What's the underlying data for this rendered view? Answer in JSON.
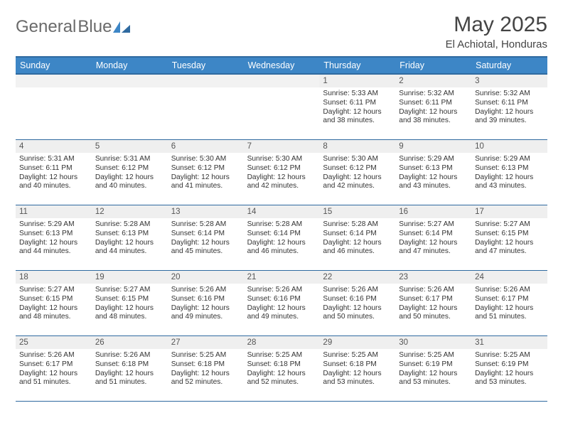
{
  "logo": {
    "text1": "General",
    "text2": "Blue"
  },
  "title": "May 2025",
  "subtitle": "El Achiotal, Honduras",
  "dayHeaders": [
    "Sunday",
    "Monday",
    "Tuesday",
    "Wednesday",
    "Thursday",
    "Friday",
    "Saturday"
  ],
  "colors": {
    "header_bg": "#3d86c6",
    "header_border": "#2f6aa0",
    "daynum_bg": "#efefef",
    "text": "#333333",
    "logo_gray": "#6a6a6a",
    "logo_blue": "#3d86c6"
  },
  "startDayIndex": 4,
  "daysInMonth": 31,
  "days": {
    "1": {
      "sunrise": "5:33 AM",
      "sunset": "6:11 PM",
      "daylight": "12 hours and 38 minutes."
    },
    "2": {
      "sunrise": "5:32 AM",
      "sunset": "6:11 PM",
      "daylight": "12 hours and 38 minutes."
    },
    "3": {
      "sunrise": "5:32 AM",
      "sunset": "6:11 PM",
      "daylight": "12 hours and 39 minutes."
    },
    "4": {
      "sunrise": "5:31 AM",
      "sunset": "6:11 PM",
      "daylight": "12 hours and 40 minutes."
    },
    "5": {
      "sunrise": "5:31 AM",
      "sunset": "6:12 PM",
      "daylight": "12 hours and 40 minutes."
    },
    "6": {
      "sunrise": "5:30 AM",
      "sunset": "6:12 PM",
      "daylight": "12 hours and 41 minutes."
    },
    "7": {
      "sunrise": "5:30 AM",
      "sunset": "6:12 PM",
      "daylight": "12 hours and 42 minutes."
    },
    "8": {
      "sunrise": "5:30 AM",
      "sunset": "6:12 PM",
      "daylight": "12 hours and 42 minutes."
    },
    "9": {
      "sunrise": "5:29 AM",
      "sunset": "6:13 PM",
      "daylight": "12 hours and 43 minutes."
    },
    "10": {
      "sunrise": "5:29 AM",
      "sunset": "6:13 PM",
      "daylight": "12 hours and 43 minutes."
    },
    "11": {
      "sunrise": "5:29 AM",
      "sunset": "6:13 PM",
      "daylight": "12 hours and 44 minutes."
    },
    "12": {
      "sunrise": "5:28 AM",
      "sunset": "6:13 PM",
      "daylight": "12 hours and 44 minutes."
    },
    "13": {
      "sunrise": "5:28 AM",
      "sunset": "6:14 PM",
      "daylight": "12 hours and 45 minutes."
    },
    "14": {
      "sunrise": "5:28 AM",
      "sunset": "6:14 PM",
      "daylight": "12 hours and 46 minutes."
    },
    "15": {
      "sunrise": "5:28 AM",
      "sunset": "6:14 PM",
      "daylight": "12 hours and 46 minutes."
    },
    "16": {
      "sunrise": "5:27 AM",
      "sunset": "6:14 PM",
      "daylight": "12 hours and 47 minutes."
    },
    "17": {
      "sunrise": "5:27 AM",
      "sunset": "6:15 PM",
      "daylight": "12 hours and 47 minutes."
    },
    "18": {
      "sunrise": "5:27 AM",
      "sunset": "6:15 PM",
      "daylight": "12 hours and 48 minutes."
    },
    "19": {
      "sunrise": "5:27 AM",
      "sunset": "6:15 PM",
      "daylight": "12 hours and 48 minutes."
    },
    "20": {
      "sunrise": "5:26 AM",
      "sunset": "6:16 PM",
      "daylight": "12 hours and 49 minutes."
    },
    "21": {
      "sunrise": "5:26 AM",
      "sunset": "6:16 PM",
      "daylight": "12 hours and 49 minutes."
    },
    "22": {
      "sunrise": "5:26 AM",
      "sunset": "6:16 PM",
      "daylight": "12 hours and 50 minutes."
    },
    "23": {
      "sunrise": "5:26 AM",
      "sunset": "6:17 PM",
      "daylight": "12 hours and 50 minutes."
    },
    "24": {
      "sunrise": "5:26 AM",
      "sunset": "6:17 PM",
      "daylight": "12 hours and 51 minutes."
    },
    "25": {
      "sunrise": "5:26 AM",
      "sunset": "6:17 PM",
      "daylight": "12 hours and 51 minutes."
    },
    "26": {
      "sunrise": "5:26 AM",
      "sunset": "6:18 PM",
      "daylight": "12 hours and 51 minutes."
    },
    "27": {
      "sunrise": "5:25 AM",
      "sunset": "6:18 PM",
      "daylight": "12 hours and 52 minutes."
    },
    "28": {
      "sunrise": "5:25 AM",
      "sunset": "6:18 PM",
      "daylight": "12 hours and 52 minutes."
    },
    "29": {
      "sunrise": "5:25 AM",
      "sunset": "6:18 PM",
      "daylight": "12 hours and 53 minutes."
    },
    "30": {
      "sunrise": "5:25 AM",
      "sunset": "6:19 PM",
      "daylight": "12 hours and 53 minutes."
    },
    "31": {
      "sunrise": "5:25 AM",
      "sunset": "6:19 PM",
      "daylight": "12 hours and 53 minutes."
    }
  },
  "labels": {
    "sunrise_prefix": "Sunrise: ",
    "sunset_prefix": "Sunset: ",
    "daylight_prefix": "Daylight: "
  }
}
